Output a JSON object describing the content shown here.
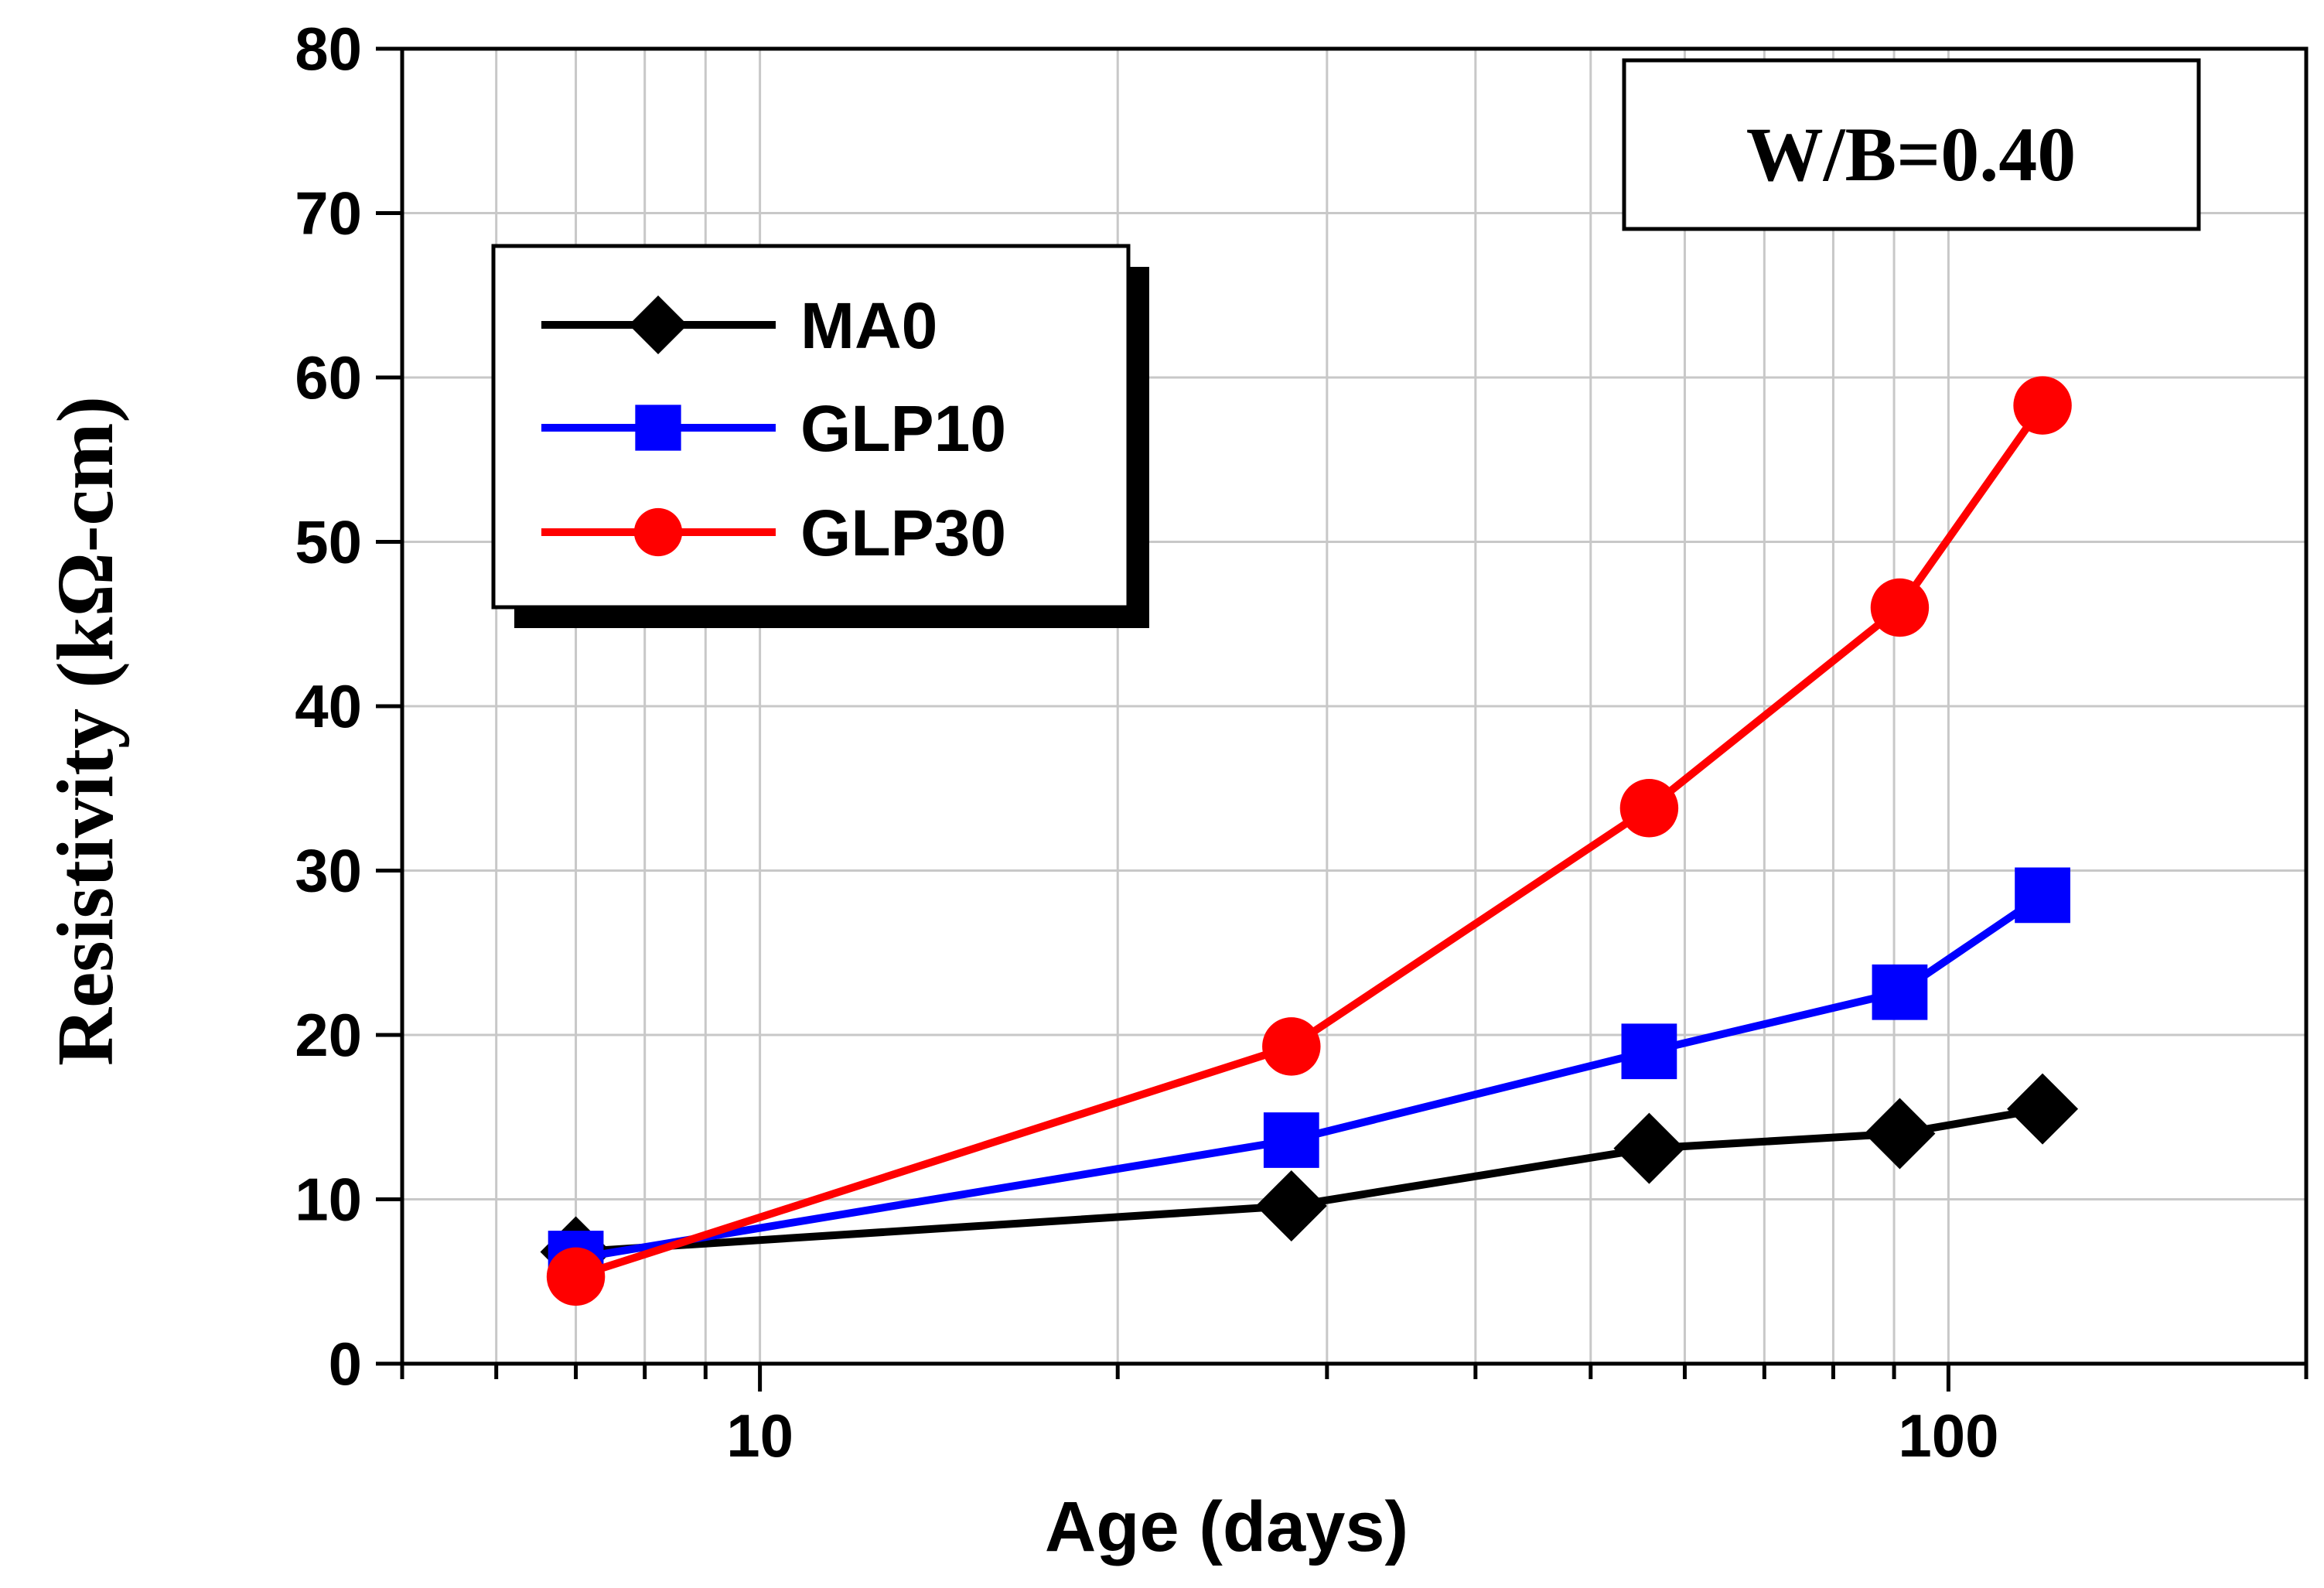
{
  "chart_data": {
    "type": "line",
    "x_scale": "log",
    "xlabel": "Age (days)",
    "ylabel": "Resistivity (kΩ-cm)",
    "xlim": [
      5,
      200
    ],
    "ylim": [
      0,
      80
    ],
    "x_tick_labels": [
      "10",
      "100"
    ],
    "x_tick_label_values": [
      10,
      100
    ],
    "y_ticks": [
      0,
      10,
      20,
      30,
      40,
      50,
      60,
      70,
      80
    ],
    "grid": true,
    "annotation": "W/B=0.40",
    "legend_position": "upper-left",
    "series": [
      {
        "name": "MA0",
        "color": "#000000",
        "marker": "diamond",
        "x": [
          7,
          28,
          56,
          91,
          120
        ],
        "y": [
          6.8,
          9.6,
          13.1,
          14.0,
          15.5
        ]
      },
      {
        "name": "GLP10",
        "color": "#0000ff",
        "marker": "square",
        "x": [
          7,
          28,
          56,
          91,
          120
        ],
        "y": [
          6.4,
          13.6,
          19.0,
          22.6,
          28.5
        ]
      },
      {
        "name": "GLP30",
        "color": "#ff0000",
        "marker": "circle",
        "x": [
          7,
          28,
          56,
          91,
          120
        ],
        "y": [
          5.3,
          19.3,
          33.8,
          46.0,
          58.3
        ]
      }
    ]
  }
}
